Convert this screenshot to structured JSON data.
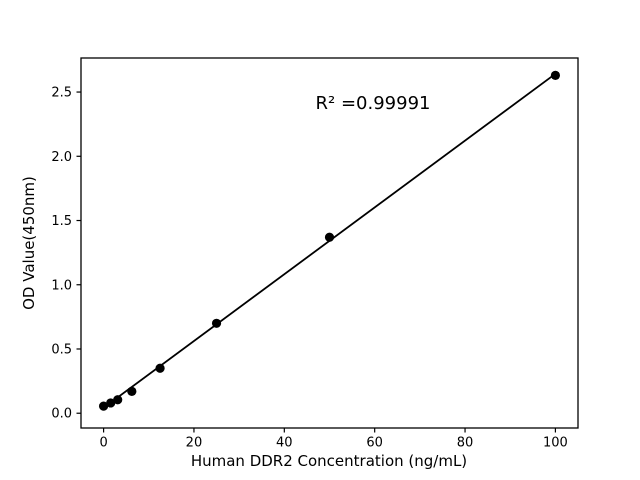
{
  "figure": {
    "background_color": "#ffffff",
    "frame_color": "#000000"
  },
  "chart_data": {
    "type": "scatter",
    "title": "",
    "xlabel": "Human DDR2 Concentration (ng/mL)",
    "ylabel": "OD Value(450nm)",
    "annotation": "R² =0.99991",
    "r_squared": 0.99991,
    "points": [
      {
        "x": 0,
        "y": 0.055
      },
      {
        "x": 1.5625,
        "y": 0.08
      },
      {
        "x": 3.125,
        "y": 0.105
      },
      {
        "x": 6.25,
        "y": 0.17
      },
      {
        "x": 12.5,
        "y": 0.35
      },
      {
        "x": 25,
        "y": 0.7
      },
      {
        "x": 50,
        "y": 1.37
      },
      {
        "x": 100,
        "y": 2.63
      }
    ],
    "fit_line": {
      "x": [
        0,
        100
      ],
      "y": [
        0.042,
        2.642
      ]
    },
    "xticks": [
      0,
      20,
      40,
      60,
      80,
      100
    ],
    "yticks": [
      0.0,
      0.5,
      1.0,
      1.5,
      2.0,
      2.5
    ],
    "xlim": [
      -5,
      105
    ],
    "ylim": [
      -0.115,
      2.765
    ],
    "grid": false,
    "legend": null,
    "marker_color": "#000000",
    "line_color": "#000000"
  }
}
